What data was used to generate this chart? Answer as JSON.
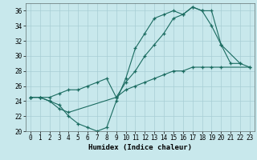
{
  "xlabel": "Humidex (Indice chaleur)",
  "bg_color": "#c8e8ec",
  "grid_color": "#a8cdd4",
  "line_color": "#1a6b60",
  "ylim": [
    20,
    37
  ],
  "xlim": [
    -0.5,
    23.5
  ],
  "yticks": [
    20,
    22,
    24,
    26,
    28,
    30,
    32,
    34,
    36
  ],
  "line_a_x": [
    0,
    1,
    2,
    3,
    4,
    5,
    6,
    7,
    8,
    9,
    10,
    11,
    12,
    13,
    14,
    15,
    16,
    17,
    18,
    19,
    20,
    21,
    22
  ],
  "line_a_y": [
    24.5,
    24.5,
    24.0,
    23.5,
    22.0,
    21.0,
    20.5,
    20.0,
    20.5,
    24.0,
    27.0,
    31.0,
    33.0,
    35.0,
    35.5,
    36.0,
    35.5,
    36.5,
    36.0,
    36.0,
    31.5,
    29.0,
    29.0
  ],
  "line_b_x": [
    0,
    1,
    2,
    3,
    4,
    9,
    10,
    11,
    12,
    13,
    14,
    15,
    16,
    17,
    18,
    19,
    20,
    22,
    23
  ],
  "line_b_y": [
    24.5,
    24.5,
    24.0,
    23.0,
    22.5,
    24.5,
    26.5,
    28.0,
    30.0,
    31.5,
    33.0,
    35.0,
    35.5,
    36.5,
    36.0,
    34.0,
    31.5,
    29.0,
    28.5
  ],
  "line_c_x": [
    0,
    1,
    2,
    3,
    4,
    5,
    6,
    7,
    8,
    9,
    10,
    11,
    12,
    13,
    14,
    15,
    16,
    17,
    18,
    19,
    20,
    23
  ],
  "line_c_y": [
    24.5,
    24.5,
    24.5,
    25.0,
    25.5,
    25.5,
    26.0,
    26.5,
    27.0,
    24.5,
    25.5,
    26.0,
    26.5,
    27.0,
    27.5,
    28.0,
    28.0,
    28.5,
    28.5,
    28.5,
    28.5,
    28.5
  ]
}
